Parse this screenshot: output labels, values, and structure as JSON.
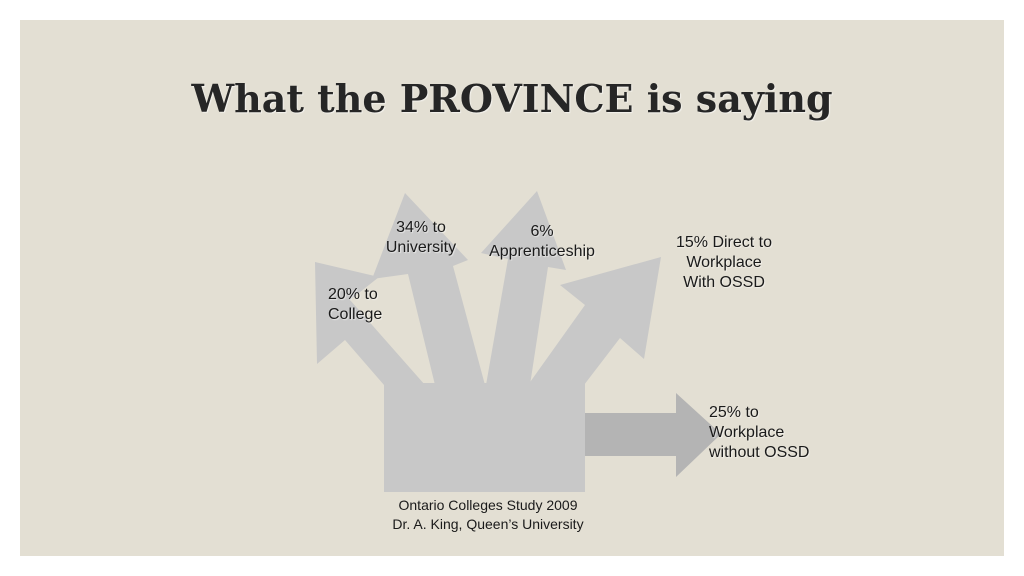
{
  "slide": {
    "title": "What the PROVINCE is saying",
    "background_color": "#e3dfd3"
  },
  "diagram": {
    "arrow_color": "#c8c8c8",
    "side_arrow_color": "#b4b4b4",
    "labels": {
      "college": [
        "20% to",
        "College"
      ],
      "university": [
        "34% to",
        "University"
      ],
      "apprenticeship": [
        "6%",
        "Apprenticeship"
      ],
      "direct_workplace": [
        "15% Direct to",
        "Workplace",
        "With OSSD"
      ],
      "workplace_no_ossd": [
        "25% to",
        "Workplace",
        "without OSSD"
      ]
    },
    "source": [
      "Ontario Colleges Study 2009",
      "Dr. A. King, Queen’s University"
    ]
  }
}
